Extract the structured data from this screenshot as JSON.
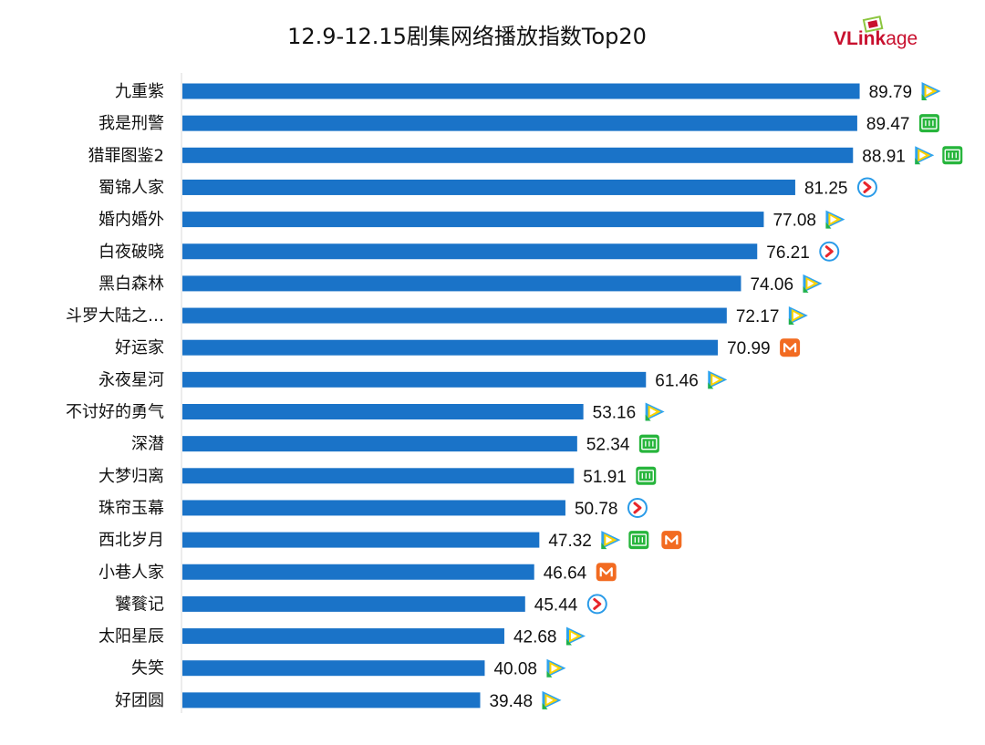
{
  "chart_data": {
    "type": "bar",
    "orientation": "horizontal",
    "title": "12.9-12.15剧集网络播放指数Top20",
    "xlabel": "",
    "ylabel": "",
    "xlim": [
      0,
      100
    ],
    "categories": [
      "九重紫",
      "我是刑警",
      "猎罪图鉴2",
      "蜀锦人家",
      "婚内婚外",
      "白夜破晓",
      "黑白森林",
      "斗罗大陆之…",
      "好运家",
      "永夜星河",
      "不讨好的勇气",
      "深潜",
      "大梦归离",
      "珠帘玉幕",
      "西北岁月",
      "小巷人家",
      "饕餮记",
      "太阳星辰",
      "失笑",
      "好团圆"
    ],
    "values": [
      89.79,
      89.47,
      88.91,
      81.25,
      77.08,
      76.21,
      74.06,
      72.17,
      70.99,
      61.46,
      53.16,
      52.34,
      51.91,
      50.78,
      47.32,
      46.64,
      45.44,
      42.68,
      40.08,
      39.48
    ],
    "value_labels": [
      "89.79",
      "89.47",
      "88.91",
      "81.25",
      "77.08",
      "76.21",
      "74.06",
      "72.17",
      "70.99",
      "61.46",
      "53.16",
      "52.34",
      "51.91",
      "50.78",
      "47.32",
      "46.64",
      "45.44",
      "42.68",
      "40.08",
      "39.48"
    ],
    "platforms": [
      [
        "tencent"
      ],
      [
        "iqiyi"
      ],
      [
        "tencent",
        "iqiyi"
      ],
      [
        "youku"
      ],
      [
        "tencent"
      ],
      [
        "youku"
      ],
      [
        "tencent"
      ],
      [
        "tencent"
      ],
      [
        "mango"
      ],
      [
        "tencent"
      ],
      [
        "tencent"
      ],
      [
        "iqiyi"
      ],
      [
        "iqiyi"
      ],
      [
        "youku"
      ],
      [
        "tencent",
        "iqiyi",
        "mango"
      ],
      [
        "mango"
      ],
      [
        "youku"
      ],
      [
        "tencent"
      ],
      [
        "tencent"
      ],
      [
        "tencent"
      ]
    ],
    "grid": false,
    "legend": "none"
  },
  "brand": {
    "logo_v": "V",
    "logo_rest": "Link",
    "logo_suffix": "age",
    "logo_color": "#c8102e"
  },
  "colors": {
    "bar": "#1a73c8",
    "tencent_icon": "tencent-video-icon",
    "iqiyi_icon": "iqiyi-icon",
    "youku_icon": "youku-icon",
    "mango_icon": "mango-tv-icon"
  }
}
